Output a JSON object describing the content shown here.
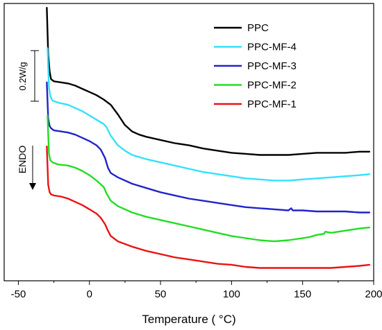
{
  "chart_data": {
    "type": "line",
    "xlabel": "Temperature ( °C)",
    "ylabel": "",
    "xlim": [
      -60,
      200
    ],
    "xticks": [
      -50,
      0,
      50,
      100,
      150,
      200
    ],
    "y_ticks_shown": false,
    "grid": false,
    "legend_position": "top-right",
    "scale_bar_label": "0.2W/g",
    "endo_label": "ENDO",
    "series": [
      {
        "name": "PPC",
        "color": "#000000",
        "x": [
          -30,
          -29,
          -28,
          -27,
          -25,
          -20,
          -15,
          -10,
          -5,
          0,
          5,
          10,
          15,
          20,
          25,
          30,
          35,
          40,
          50,
          60,
          70,
          80,
          90,
          100,
          110,
          120,
          130,
          140,
          150,
          160,
          170,
          180,
          190,
          197
        ],
        "y": [
          2.38,
          1.94,
          1.78,
          1.71,
          1.69,
          1.68,
          1.67,
          1.65,
          1.62,
          1.59,
          1.56,
          1.52,
          1.47,
          1.38,
          1.28,
          1.22,
          1.19,
          1.17,
          1.14,
          1.11,
          1.09,
          1.06,
          1.04,
          1.02,
          1.01,
          1.0,
          1.0,
          1.0,
          1.01,
          1.02,
          1.02,
          1.02,
          1.03,
          1.03
        ]
      },
      {
        "name": "PPC-MF-4",
        "color": "#33e0ff",
        "x": [
          -29.5,
          -28.5,
          -27.5,
          -26,
          -22,
          -15,
          -10,
          -5,
          0,
          5,
          10,
          12,
          15,
          20,
          25,
          30,
          40,
          50,
          60,
          70,
          80,
          90,
          100,
          110,
          120,
          130,
          140,
          150,
          160,
          170,
          180,
          190,
          197
        ],
        "y": [
          2.0,
          1.63,
          1.55,
          1.51,
          1.49,
          1.47,
          1.44,
          1.41,
          1.37,
          1.33,
          1.29,
          1.26,
          1.18,
          1.09,
          1.04,
          1.0,
          0.96,
          0.93,
          0.9,
          0.87,
          0.84,
          0.82,
          0.8,
          0.78,
          0.77,
          0.76,
          0.76,
          0.77,
          0.78,
          0.79,
          0.8,
          0.81,
          0.82
        ]
      },
      {
        "name": "PPC-MF-3",
        "color": "#2222cc",
        "x": [
          -30,
          -29,
          -28,
          -27,
          -25,
          -20,
          -15,
          -10,
          -5,
          0,
          5,
          8,
          11,
          13,
          15,
          20,
          30,
          40,
          50,
          60,
          70,
          80,
          90,
          100,
          110,
          120,
          130,
          140,
          142,
          143,
          150,
          160,
          170,
          180,
          190,
          197
        ],
        "y": [
          1.68,
          1.34,
          1.27,
          1.25,
          1.23,
          1.22,
          1.21,
          1.19,
          1.16,
          1.13,
          1.09,
          1.05,
          0.97,
          0.88,
          0.83,
          0.79,
          0.73,
          0.69,
          0.65,
          0.62,
          0.59,
          0.57,
          0.55,
          0.53,
          0.51,
          0.5,
          0.49,
          0.48,
          0.5,
          0.48,
          0.48,
          0.47,
          0.47,
          0.47,
          0.46,
          0.46
        ]
      },
      {
        "name": "PPC-MF-2",
        "color": "#22dd22",
        "x": [
          -29.5,
          -28.5,
          -27.5,
          -26,
          -22,
          -15,
          -10,
          -5,
          0,
          5,
          10,
          12,
          15,
          20,
          30,
          40,
          50,
          60,
          70,
          80,
          90,
          100,
          110,
          120,
          130,
          140,
          150,
          155,
          160,
          165,
          166,
          170,
          180,
          190,
          197
        ],
        "y": [
          1.37,
          1.01,
          0.95,
          0.93,
          0.91,
          0.9,
          0.88,
          0.85,
          0.81,
          0.76,
          0.7,
          0.64,
          0.57,
          0.52,
          0.46,
          0.42,
          0.39,
          0.36,
          0.33,
          0.3,
          0.27,
          0.24,
          0.22,
          0.2,
          0.19,
          0.2,
          0.22,
          0.23,
          0.25,
          0.26,
          0.28,
          0.27,
          0.29,
          0.31,
          0.32
        ]
      },
      {
        "name": "PPC-MF-1",
        "color": "#ee1111",
        "x": [
          -30,
          -29,
          -28,
          -27,
          -25,
          -20,
          -15,
          -10,
          -5,
          0,
          5,
          8,
          11,
          13,
          15,
          18,
          20,
          30,
          40,
          50,
          60,
          70,
          80,
          90,
          100,
          110,
          120,
          130,
          140,
          150,
          160,
          170,
          180,
          190,
          197
        ],
        "y": [
          1.08,
          0.72,
          0.65,
          0.63,
          0.62,
          0.61,
          0.59,
          0.56,
          0.53,
          0.49,
          0.45,
          0.41,
          0.35,
          0.29,
          0.24,
          0.21,
          0.19,
          0.14,
          0.1,
          0.07,
          0.04,
          0.02,
          0.0,
          -0.02,
          -0.03,
          -0.05,
          -0.06,
          -0.06,
          -0.06,
          -0.06,
          -0.06,
          -0.06,
          -0.05,
          -0.04,
          -0.03
        ]
      }
    ]
  }
}
